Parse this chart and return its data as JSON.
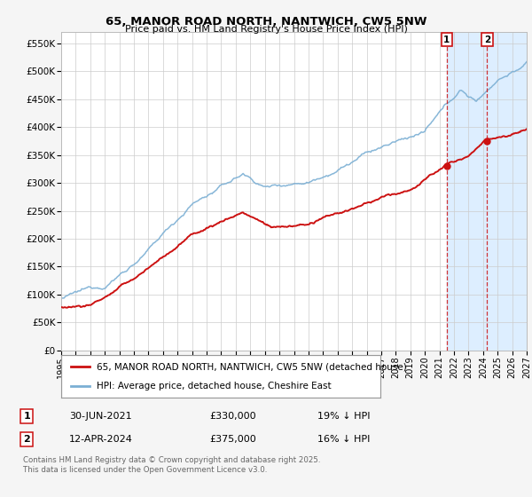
{
  "title": "65, MANOR ROAD NORTH, NANTWICH, CW5 5NW",
  "subtitle": "Price paid vs. HM Land Registry's House Price Index (HPI)",
  "yticks": [
    0,
    50000,
    100000,
    150000,
    200000,
    250000,
    300000,
    350000,
    400000,
    450000,
    500000,
    550000
  ],
  "ytick_labels": [
    "£0",
    "£50K",
    "£100K",
    "£150K",
    "£200K",
    "£250K",
    "£300K",
    "£350K",
    "£400K",
    "£450K",
    "£500K",
    "£550K"
  ],
  "hpi_color": "#7bafd4",
  "price_color": "#cc1111",
  "vline_color": "#cc1111",
  "shade_color": "#ddeeff",
  "transaction1": {
    "date": "30-JUN-2021",
    "price": 330000,
    "label": "1",
    "note": "19% ↓ HPI",
    "x": 2021.5
  },
  "transaction2": {
    "date": "12-APR-2024",
    "price": 375000,
    "label": "2",
    "note": "16% ↓ HPI",
    "x": 2024.28
  },
  "legend_line1": "65, MANOR ROAD NORTH, NANTWICH, CW5 5NW (detached house)",
  "legend_line2": "HPI: Average price, detached house, Cheshire East",
  "footer": "Contains HM Land Registry data © Crown copyright and database right 2025.\nThis data is licensed under the Open Government Licence v3.0.",
  "background_color": "#f5f5f5",
  "plot_bg_color": "#ffffff"
}
